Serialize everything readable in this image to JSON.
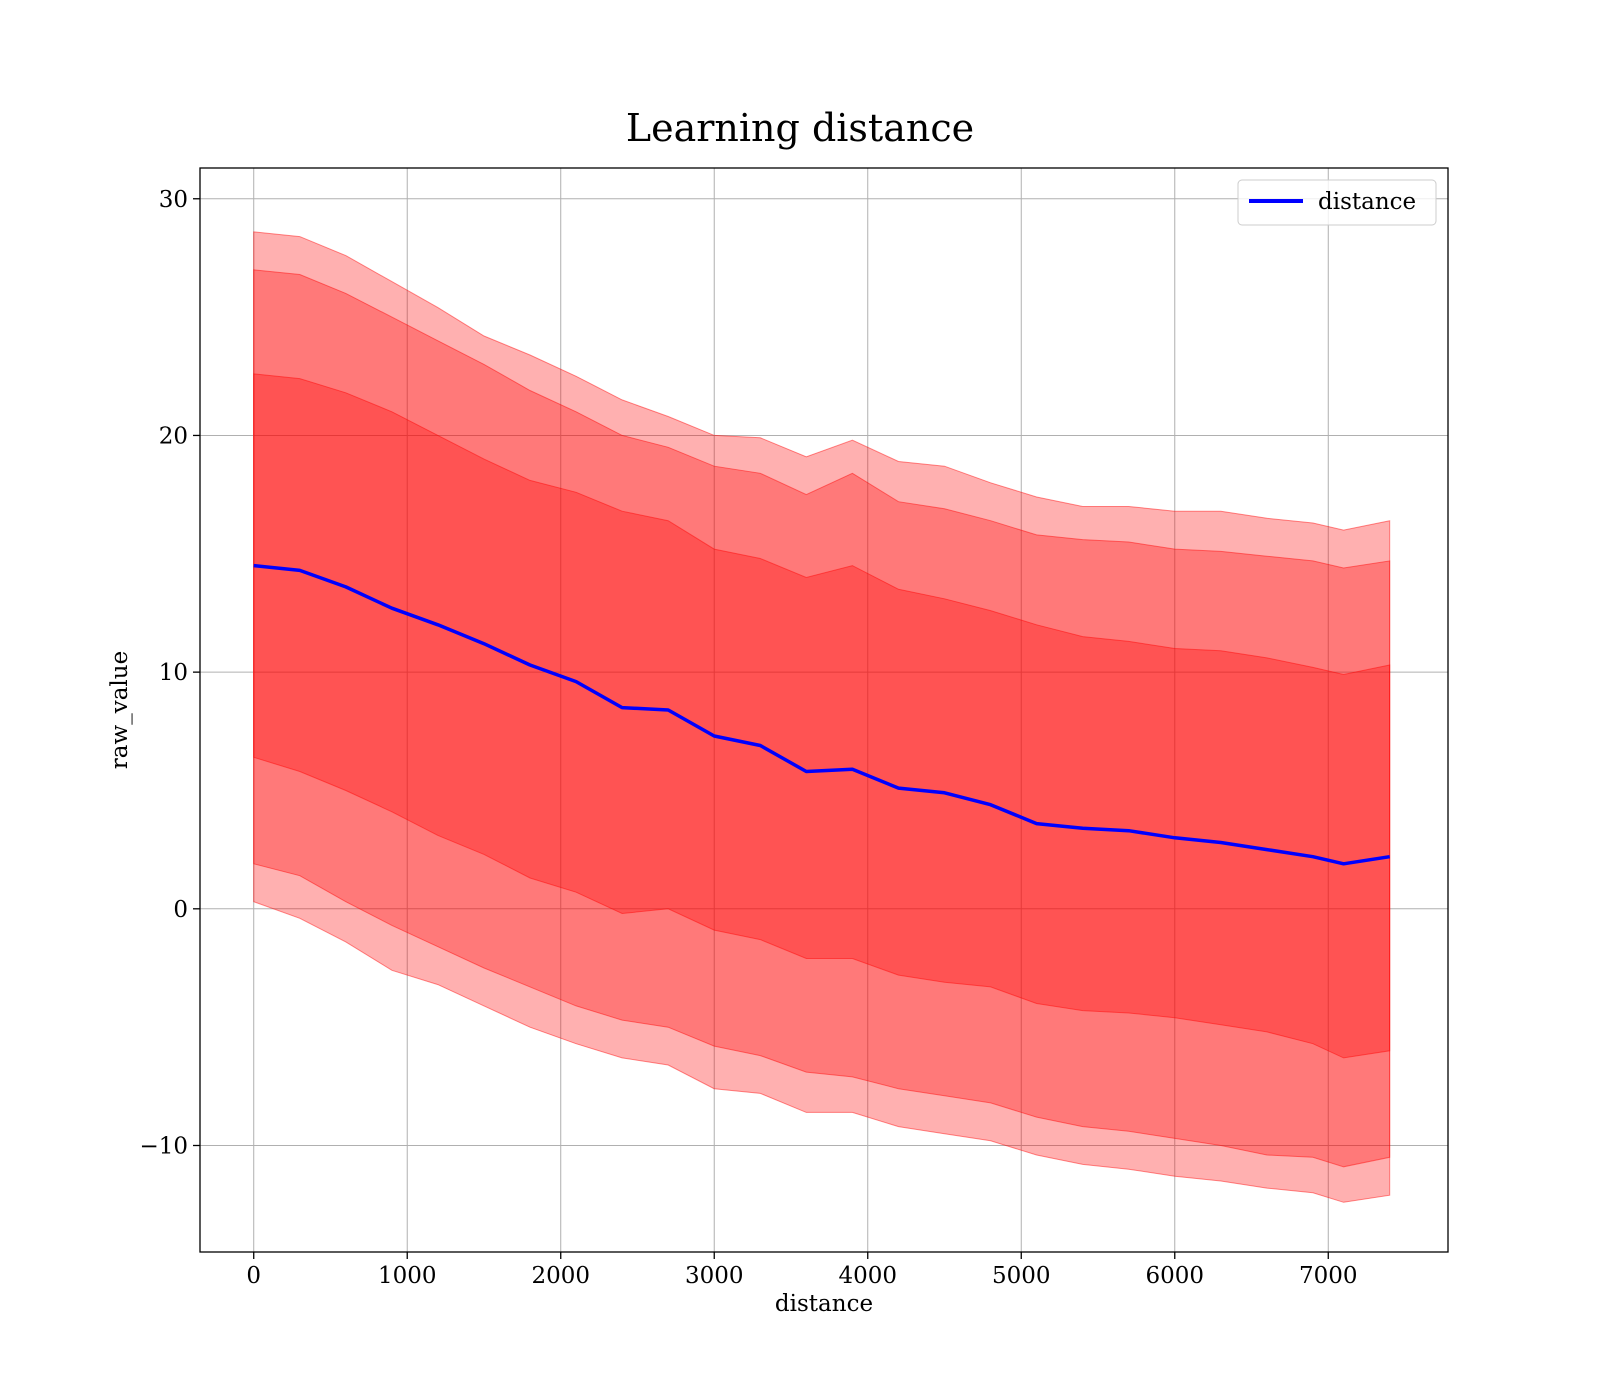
{
  "chart_data": {
    "type": "area",
    "title": "Learning distance",
    "xlabel": "distance",
    "ylabel": "raw_value",
    "xlim": [
      -350,
      7780
    ],
    "ylim": [
      -14.5,
      31.3
    ],
    "xticks": [
      0,
      1000,
      2000,
      3000,
      4000,
      5000,
      6000,
      7000
    ],
    "xtick_labels": [
      "0",
      "1000",
      "2000",
      "3000",
      "4000",
      "5000",
      "6000",
      "7000"
    ],
    "yticks": [
      -10,
      0,
      10,
      20,
      30
    ],
    "ytick_labels": [
      "−10",
      "0",
      "10",
      "20",
      "30"
    ],
    "grid": true,
    "legend_position": "top-right",
    "colors": {
      "line": "#0000ff",
      "band": "#ff0000",
      "band_edge": "#ff0000",
      "band_alpha": 0.31,
      "grid": "#b0b0b0"
    },
    "x": [
      0,
      300,
      600,
      900,
      1200,
      1500,
      1800,
      2100,
      2400,
      2700,
      3000,
      3300,
      3600,
      3900,
      4200,
      4500,
      4800,
      5100,
      5400,
      5700,
      6000,
      6300,
      6600,
      6900,
      7100,
      7400
    ],
    "series": [
      {
        "name": "distance",
        "values": [
          14.5,
          14.3,
          13.6,
          12.7,
          12.0,
          11.2,
          10.3,
          9.6,
          8.5,
          8.4,
          7.3,
          6.9,
          5.8,
          5.9,
          5.1,
          4.9,
          4.4,
          3.6,
          3.4,
          3.3,
          3.0,
          2.8,
          2.5,
          2.2,
          1.9,
          2.2
        ]
      }
    ],
    "bands": [
      {
        "lower": [
          0.3,
          -0.4,
          -1.4,
          -2.6,
          -3.2,
          -4.1,
          -5.0,
          -5.7,
          -6.3,
          -6.6,
          -7.6,
          -7.8,
          -8.6,
          -8.6,
          -9.2,
          -9.5,
          -9.8,
          -10.4,
          -10.8,
          -11.0,
          -11.3,
          -11.5,
          -11.8,
          -12.0,
          -12.4,
          -12.1
        ],
        "upper": [
          28.6,
          28.4,
          27.6,
          26.5,
          25.4,
          24.2,
          23.4,
          22.5,
          21.5,
          20.8,
          20.0,
          19.9,
          19.1,
          19.8,
          18.9,
          18.7,
          18.0,
          17.4,
          17.0,
          17.0,
          16.8,
          16.8,
          16.5,
          16.3,
          16.0,
          16.4
        ]
      },
      {
        "lower": [
          1.9,
          1.4,
          0.3,
          -0.7,
          -1.6,
          -2.5,
          -3.3,
          -4.1,
          -4.7,
          -5.0,
          -5.8,
          -6.2,
          -6.9,
          -7.1,
          -7.6,
          -7.9,
          -8.2,
          -8.8,
          -9.2,
          -9.4,
          -9.7,
          -10.0,
          -10.4,
          -10.5,
          -10.9,
          -10.5
        ],
        "upper": [
          27.0,
          26.8,
          26.0,
          25.0,
          24.0,
          23.0,
          21.9,
          21.0,
          20.0,
          19.5,
          18.7,
          18.4,
          17.5,
          18.4,
          17.2,
          16.9,
          16.4,
          15.8,
          15.6,
          15.5,
          15.2,
          15.1,
          14.9,
          14.7,
          14.4,
          14.7
        ]
      },
      {
        "lower": [
          6.4,
          5.8,
          5.0,
          4.1,
          3.1,
          2.3,
          1.3,
          0.7,
          -0.2,
          0.0,
          -0.9,
          -1.3,
          -2.1,
          -2.1,
          -2.8,
          -3.1,
          -3.3,
          -4.0,
          -4.3,
          -4.4,
          -4.6,
          -4.9,
          -5.2,
          -5.7,
          -6.3,
          -6.0
        ],
        "upper": [
          22.6,
          22.4,
          21.8,
          21.0,
          20.0,
          19.0,
          18.1,
          17.6,
          16.8,
          16.4,
          15.2,
          14.8,
          14.0,
          14.5,
          13.5,
          13.1,
          12.6,
          12.0,
          11.5,
          11.3,
          11.0,
          10.9,
          10.6,
          10.2,
          9.9,
          10.3
        ]
      }
    ]
  }
}
